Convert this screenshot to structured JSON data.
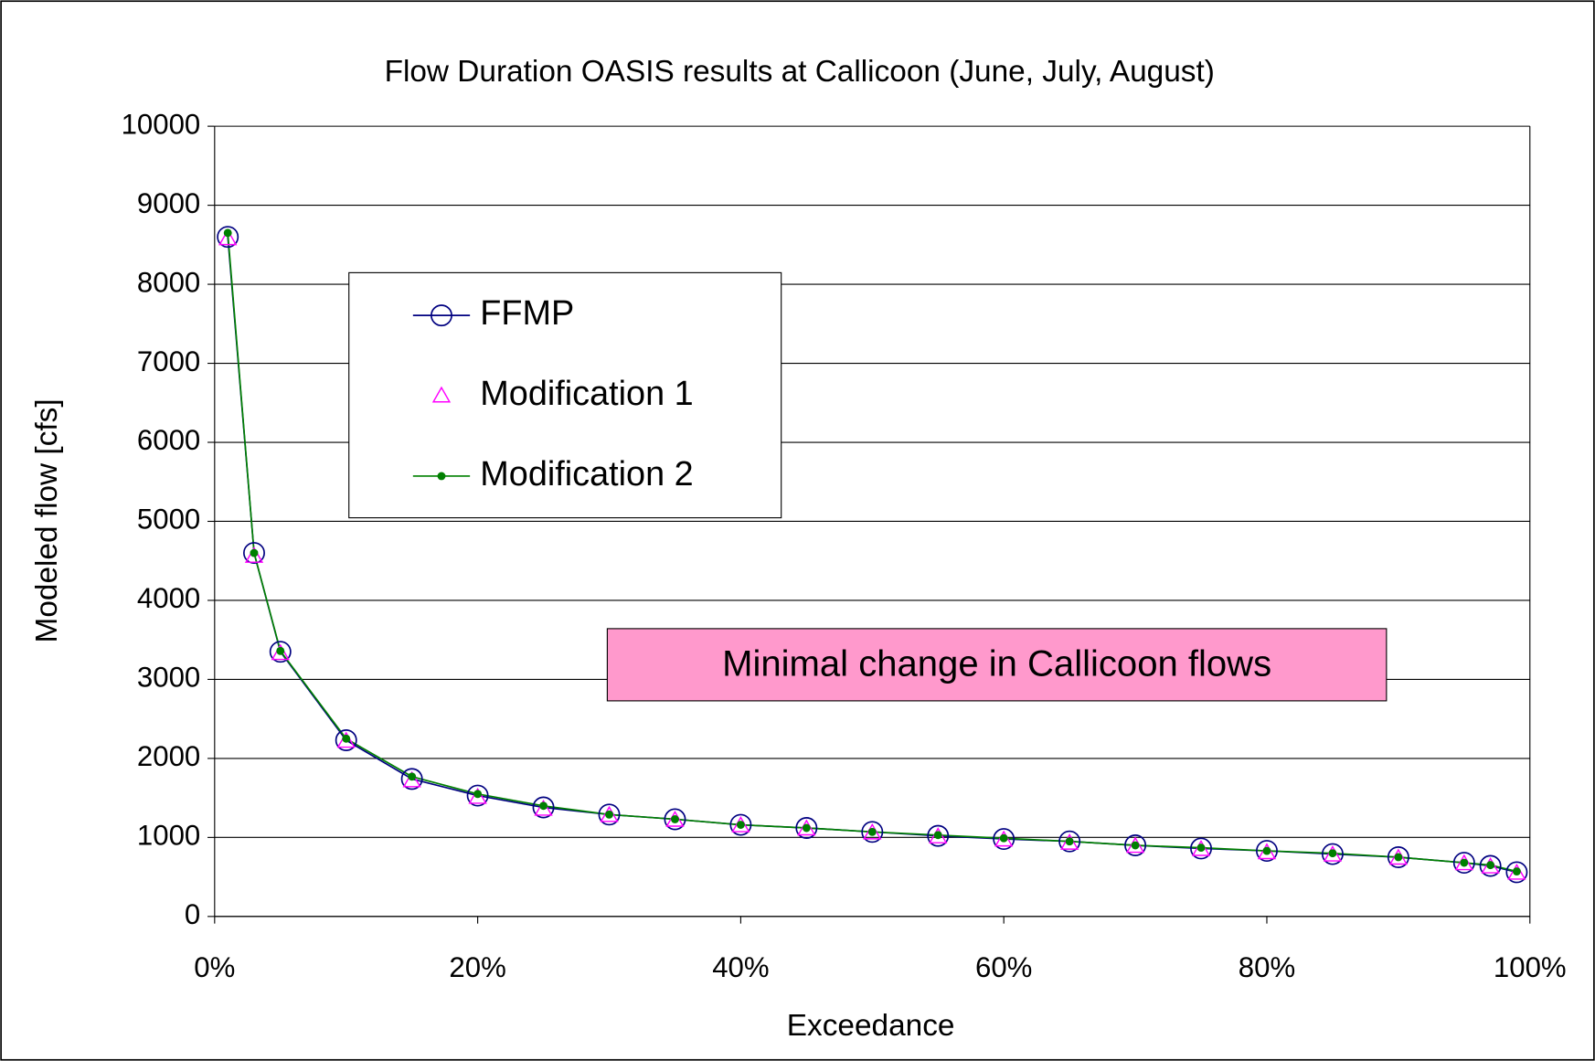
{
  "chart_data": {
    "type": "line",
    "title": "Flow Duration OASIS results at Callicoon (June, July, August)",
    "x_label": "Exceedance",
    "y_label": "Modeled flow [cfs]",
    "annotation": "Minimal change in Callicoon flows",
    "x": [
      1,
      3,
      5,
      10,
      15,
      20,
      25,
      30,
      35,
      40,
      45,
      50,
      55,
      60,
      65,
      70,
      75,
      80,
      85,
      90,
      95,
      97,
      99
    ],
    "series": [
      {
        "name": "FFMP",
        "color": "#000080",
        "marker": "circle",
        "line": true,
        "values": [
          8600,
          4600,
          3350,
          2230,
          1740,
          1530,
          1380,
          1290,
          1230,
          1160,
          1120,
          1070,
          1020,
          980,
          950,
          900,
          860,
          830,
          790,
          750,
          680,
          640,
          560
        ]
      },
      {
        "name": "Modification 1",
        "color": "#ff00ff",
        "marker": "triangle",
        "line": false,
        "values": [
          8580,
          4560,
          3330,
          2220,
          1720,
          1510,
          1360,
          1280,
          1220,
          1150,
          1110,
          1060,
          1010,
          970,
          930,
          890,
          850,
          810,
          780,
          740,
          670,
          630,
          550
        ]
      },
      {
        "name": "Modification 2",
        "color": "#008000",
        "marker": "dot",
        "line": true,
        "values": [
          8650,
          4600,
          3360,
          2250,
          1770,
          1550,
          1400,
          1290,
          1230,
          1160,
          1120,
          1070,
          1030,
          990,
          950,
          900,
          870,
          830,
          800,
          750,
          680,
          650,
          570
        ]
      }
    ],
    "xlim": [
      0,
      100
    ],
    "xticks": [
      {
        "value": 0,
        "label": "0%"
      },
      {
        "value": 20,
        "label": "20%"
      },
      {
        "value": 40,
        "label": "40%"
      },
      {
        "value": 60,
        "label": "60%"
      },
      {
        "value": 80,
        "label": "80%"
      },
      {
        "value": 100,
        "label": "100%"
      }
    ],
    "ylim": [
      0,
      10000
    ],
    "yticks": [
      0,
      1000,
      2000,
      3000,
      4000,
      5000,
      6000,
      7000,
      8000,
      9000,
      10000
    ],
    "grid": true
  }
}
